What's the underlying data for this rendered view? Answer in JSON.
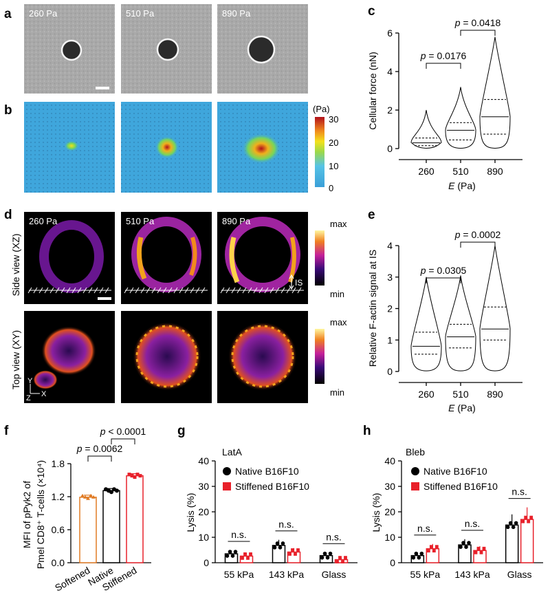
{
  "panels": {
    "a": "a",
    "b": "b",
    "c": "c",
    "d": "d",
    "e": "e",
    "f": "f",
    "g": "g",
    "h": "h"
  },
  "stiffness_labels": [
    "260 Pa",
    "510 Pa",
    "890 Pa"
  ],
  "colorbar_b": {
    "unit": "(Pa)",
    "ticks": [
      "30",
      "20",
      "10",
      "0"
    ]
  },
  "colorbar_d": {
    "max": "max",
    "min": "min"
  },
  "view_labels": {
    "side": "Side view (XZ)",
    "top": "Top view (XY)",
    "is": "IS"
  },
  "axes_glyphs": {
    "y": "Y",
    "z": "Z",
    "x": "X"
  },
  "chart_data": [
    {
      "panel": "c",
      "type": "violin",
      "categories": [
        "260",
        "510",
        "890"
      ],
      "ylabel": "Cellular force (nN)",
      "xlabel": "E (Pa)",
      "xlabel_var": "E",
      "xlabel_unit": " (Pa)",
      "ylim": [
        0,
        6
      ],
      "yticks": [
        "0",
        "2",
        "4",
        "6"
      ],
      "medians": [
        0.3,
        0.95,
        1.65
      ],
      "q1": [
        0.15,
        0.45,
        0.75
      ],
      "q3": [
        0.55,
        1.35,
        2.55
      ],
      "max": [
        2.0,
        3.2,
        5.8
      ],
      "comparisons": [
        {
          "p": "p = 0.0176",
          "pair": [
            0,
            1
          ]
        },
        {
          "p": "p = 0.0418",
          "pair": [
            1,
            2
          ]
        }
      ]
    },
    {
      "panel": "e",
      "type": "violin",
      "categories": [
        "260",
        "510",
        "890"
      ],
      "ylabel": "Relative F-actin signal at IS",
      "xlabel": "E (Pa)",
      "xlabel_var": "E",
      "xlabel_unit": " (Pa)",
      "ylim": [
        0,
        4
      ],
      "yticks": [
        "0",
        "1",
        "2",
        "3",
        "4"
      ],
      "medians": [
        0.8,
        1.1,
        1.35
      ],
      "q1": [
        0.55,
        0.75,
        1.0
      ],
      "q3": [
        1.25,
        1.5,
        2.05
      ],
      "max": [
        3.0,
        3.05,
        4.0
      ],
      "comparisons": [
        {
          "p": "p = 0.0305",
          "pair": [
            0,
            1
          ]
        },
        {
          "p": "p = 0.0002",
          "pair": [
            1,
            2
          ]
        }
      ]
    },
    {
      "panel": "f",
      "type": "bar",
      "categories": [
        "Softened",
        "Native",
        "Stiffened"
      ],
      "ylabel_line1": "MFI of pPyk2 of",
      "ylabel_line2": "Pmel CD8⁺ T-cells (×10⁴)",
      "ylim": [
        0,
        1.8
      ],
      "yticks": [
        "0.0",
        "0.6",
        "1.2",
        "1.8"
      ],
      "values": [
        1.19,
        1.31,
        1.58
      ],
      "colors": [
        "#e07b24",
        "#000000",
        "#e8202a"
      ],
      "comparisons": [
        {
          "p": "p = 0.0062",
          "pair": [
            0,
            1
          ]
        },
        {
          "p": "p < 0.0001",
          "pair": [
            1,
            2
          ]
        }
      ]
    },
    {
      "panel": "g",
      "type": "bar",
      "title": "LatA",
      "categories": [
        "55 kPa",
        "143 kPa",
        "Glass"
      ],
      "ylabel": "Lysis (%)",
      "ylim": [
        0,
        40
      ],
      "yticks": [
        "0",
        "10",
        "20",
        "30",
        "40"
      ],
      "series": [
        {
          "name": "Native B16F10",
          "color": "#000000",
          "values": [
            3.5,
            6.8,
            2.8
          ]
        },
        {
          "name": "Stiffened B16F10",
          "color": "#e8202a",
          "values": [
            2.6,
            4.2,
            1.2
          ]
        }
      ],
      "annotations": [
        "n.s.",
        "n.s.",
        "n.s."
      ]
    },
    {
      "panel": "h",
      "type": "bar",
      "title": "Bleb",
      "categories": [
        "55 kPa",
        "143 kPa",
        "Glass"
      ],
      "ylabel": "Lysis (%)",
      "ylim": [
        0,
        40
      ],
      "yticks": [
        "0",
        "10",
        "20",
        "30",
        "40"
      ],
      "series": [
        {
          "name": "Native B16F10",
          "color": "#000000",
          "values": [
            2.8,
            7.0,
            14.8
          ]
        },
        {
          "name": "Stiffened B16F10",
          "color": "#e8202a",
          "values": [
            5.5,
            4.8,
            17.0
          ]
        }
      ],
      "annotations": [
        "n.s.",
        "n.s.",
        "n.s."
      ]
    }
  ]
}
